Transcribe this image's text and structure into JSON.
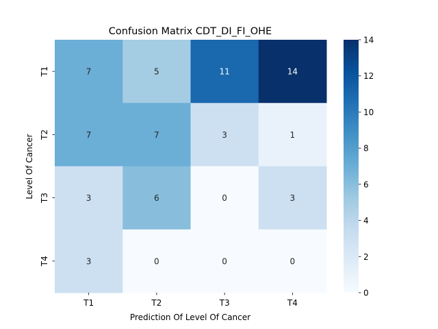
{
  "chart_data": {
    "type": "heatmap",
    "title": "Confusion Matrix CDT_DI_FI_OHE",
    "xlabel": "Prediction Of Level Of Cancer",
    "ylabel": "Level Of Cancer",
    "x_categories": [
      "T1",
      "T2",
      "T3",
      "T4"
    ],
    "y_categories": [
      "T1",
      "T2",
      "T3",
      "T4"
    ],
    "values": [
      [
        7,
        5,
        11,
        14
      ],
      [
        7,
        7,
        3,
        1
      ],
      [
        3,
        6,
        0,
        3
      ],
      [
        3,
        0,
        0,
        0
      ]
    ],
    "colormap": "Blues",
    "vmin": 0,
    "vmax": 14,
    "colorbar_ticks": [
      "0",
      "2",
      "4",
      "6",
      "8",
      "10",
      "12",
      "14"
    ],
    "annotation_dark_color": "#262626",
    "annotation_light_color": "#ffffff"
  }
}
